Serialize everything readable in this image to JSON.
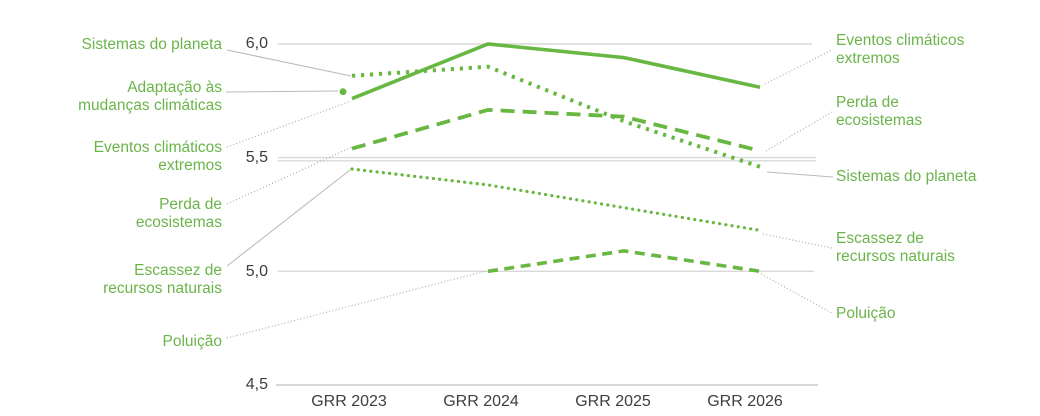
{
  "chart_data": {
    "type": "line",
    "title": "",
    "x_categories": [
      "GRR 2023",
      "GRR 2024",
      "GRR 2025",
      "GRR 2026"
    ],
    "y_tick_labels": [
      "6,0",
      "5,5",
      "5,0",
      "4,5"
    ],
    "ylim": [
      4.5,
      6.0
    ],
    "grid": true,
    "legend_position": "left-and-right-direct-labels",
    "line_color": "#67b742",
    "label_color": "#6ab44a",
    "series": [
      {
        "id": "eventos",
        "name": "Eventos climáticos extremos",
        "style": "solid",
        "values": [
          5.76,
          6.0,
          5.94,
          5.81
        ]
      },
      {
        "id": "sistemas",
        "name": "Sistemas do planeta",
        "style": "dotted-coarse",
        "values": [
          5.86,
          5.9,
          5.66,
          5.46
        ]
      },
      {
        "id": "adaptacao",
        "name": "Adaptação às mudanças climáticas",
        "style": "point",
        "values": [
          5.79,
          null,
          null,
          null
        ]
      },
      {
        "id": "perda",
        "name": "Perda de ecosistemas",
        "style": "dashed-long",
        "values": [
          5.54,
          5.71,
          5.68,
          5.53
        ]
      },
      {
        "id": "escassez",
        "name": "Escassez de recursos naturais",
        "style": "dotted-fine",
        "values": [
          5.45,
          5.38,
          5.28,
          5.18
        ]
      },
      {
        "id": "poluicao",
        "name": "Poluição",
        "style": "dashed",
        "values": [
          null,
          5.0,
          5.09,
          5.0
        ]
      }
    ]
  },
  "labels_left": {
    "sistemas": "Sistemas do planeta",
    "adaptacao": "Adaptação às\nmudanças climáticas",
    "eventos": "Eventos climáticos\nextremos",
    "perda": "Perda de\necosistemas",
    "escassez": "Escassez de\nrecursos naturais",
    "poluicao": "Poluição"
  },
  "labels_right": {
    "eventos": "Eventos climáticos\nextremos",
    "perda": "Perda de\necosistemas",
    "sistemas": "Sistemas do planeta",
    "escassez": "Escassez de\nrecursos naturais",
    "poluicao": "Poluição"
  }
}
